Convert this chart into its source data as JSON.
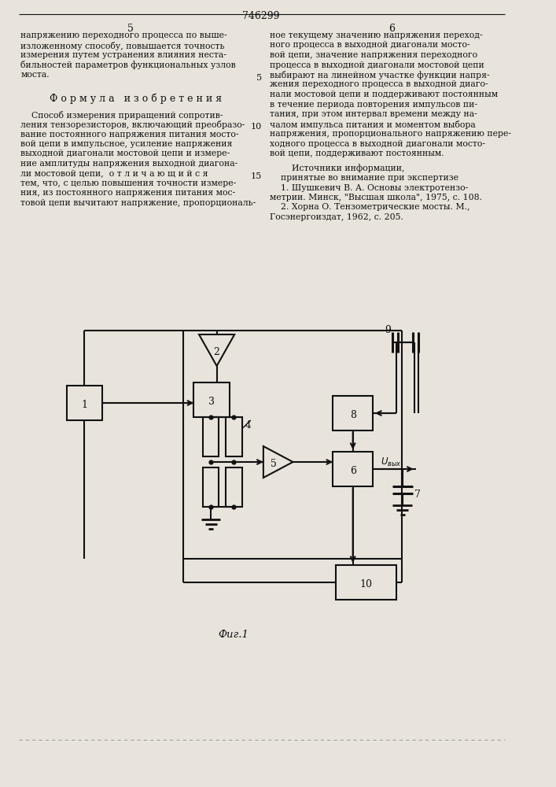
{
  "bg_color": "#e8e4dc",
  "text_color": "#111111",
  "page_number_left": "5",
  "page_number_center": "746299",
  "page_number_right": "6",
  "col_left_lines": [
    "напряжению переходного процесса по выше-",
    "изложенному способу, повышается точность",
    "измерения путем устранения влияния неста-",
    "бильностей параметров функциональных узлов",
    "моста."
  ],
  "formula_title": "Ф о р м у л а   и з о б р е т е н и я",
  "formula_lines": [
    "    Способ измерения приращений сопротив-",
    "ления тензорезисторов, включающий преобразо-",
    "вание постоянного напряжения питания мосто-",
    "вой цепи в импульсное, усиление напряжения",
    "выходной диагонали мостовой цепи и измере-",
    "ние амплитуды напряжения выходной диагона-",
    "ли мостовой цепи,  о т л и ч а ю щ и й с я",
    "тем, что, с целью повышения точности измере-",
    "ния, из постоянного напряжения питания мос-",
    "товой цепи вычитают напряжение, пропорциональ-"
  ],
  "col_right_lines": [
    "ное текущему значению напряжения переход-",
    "ного процесса в выходной диагонали мосто-",
    "вой цепи, значение напряжения переходного",
    "процесса в выходной диагонали мостовой цепи",
    "выбирают на линейном участке функции напря-",
    "жения переходного процесса в выходной диаго-",
    "нали мостовой цепи и поддерживают постоянным",
    "в течение периода повторения импульсов пи-",
    "тания, при этом интервал времени между на-",
    "чалом импульса питания и моментом выбора",
    "напряжения, пропорционального напряжению пере-",
    "ходного процесса в выходной диагонали мосто-",
    "вой цепи, поддерживают постоянным."
  ],
  "sources_title": "        Источники информации,",
  "sources_subtitle": "    принятые во внимание при экспертизе",
  "source1a": "    1. Шушкевич В. А. Основы электротензо-",
  "source1b": "метрии. Минск, \"Высшая школа\", 1975, с. 108.",
  "source2a": "    2. Хорна О. Тензометрические мосты. М.,",
  "source2b": "Госэнергоиздат, 1962, с. 205.",
  "fig_label": "Фиг.1",
  "uvyx_label": "Uвых"
}
